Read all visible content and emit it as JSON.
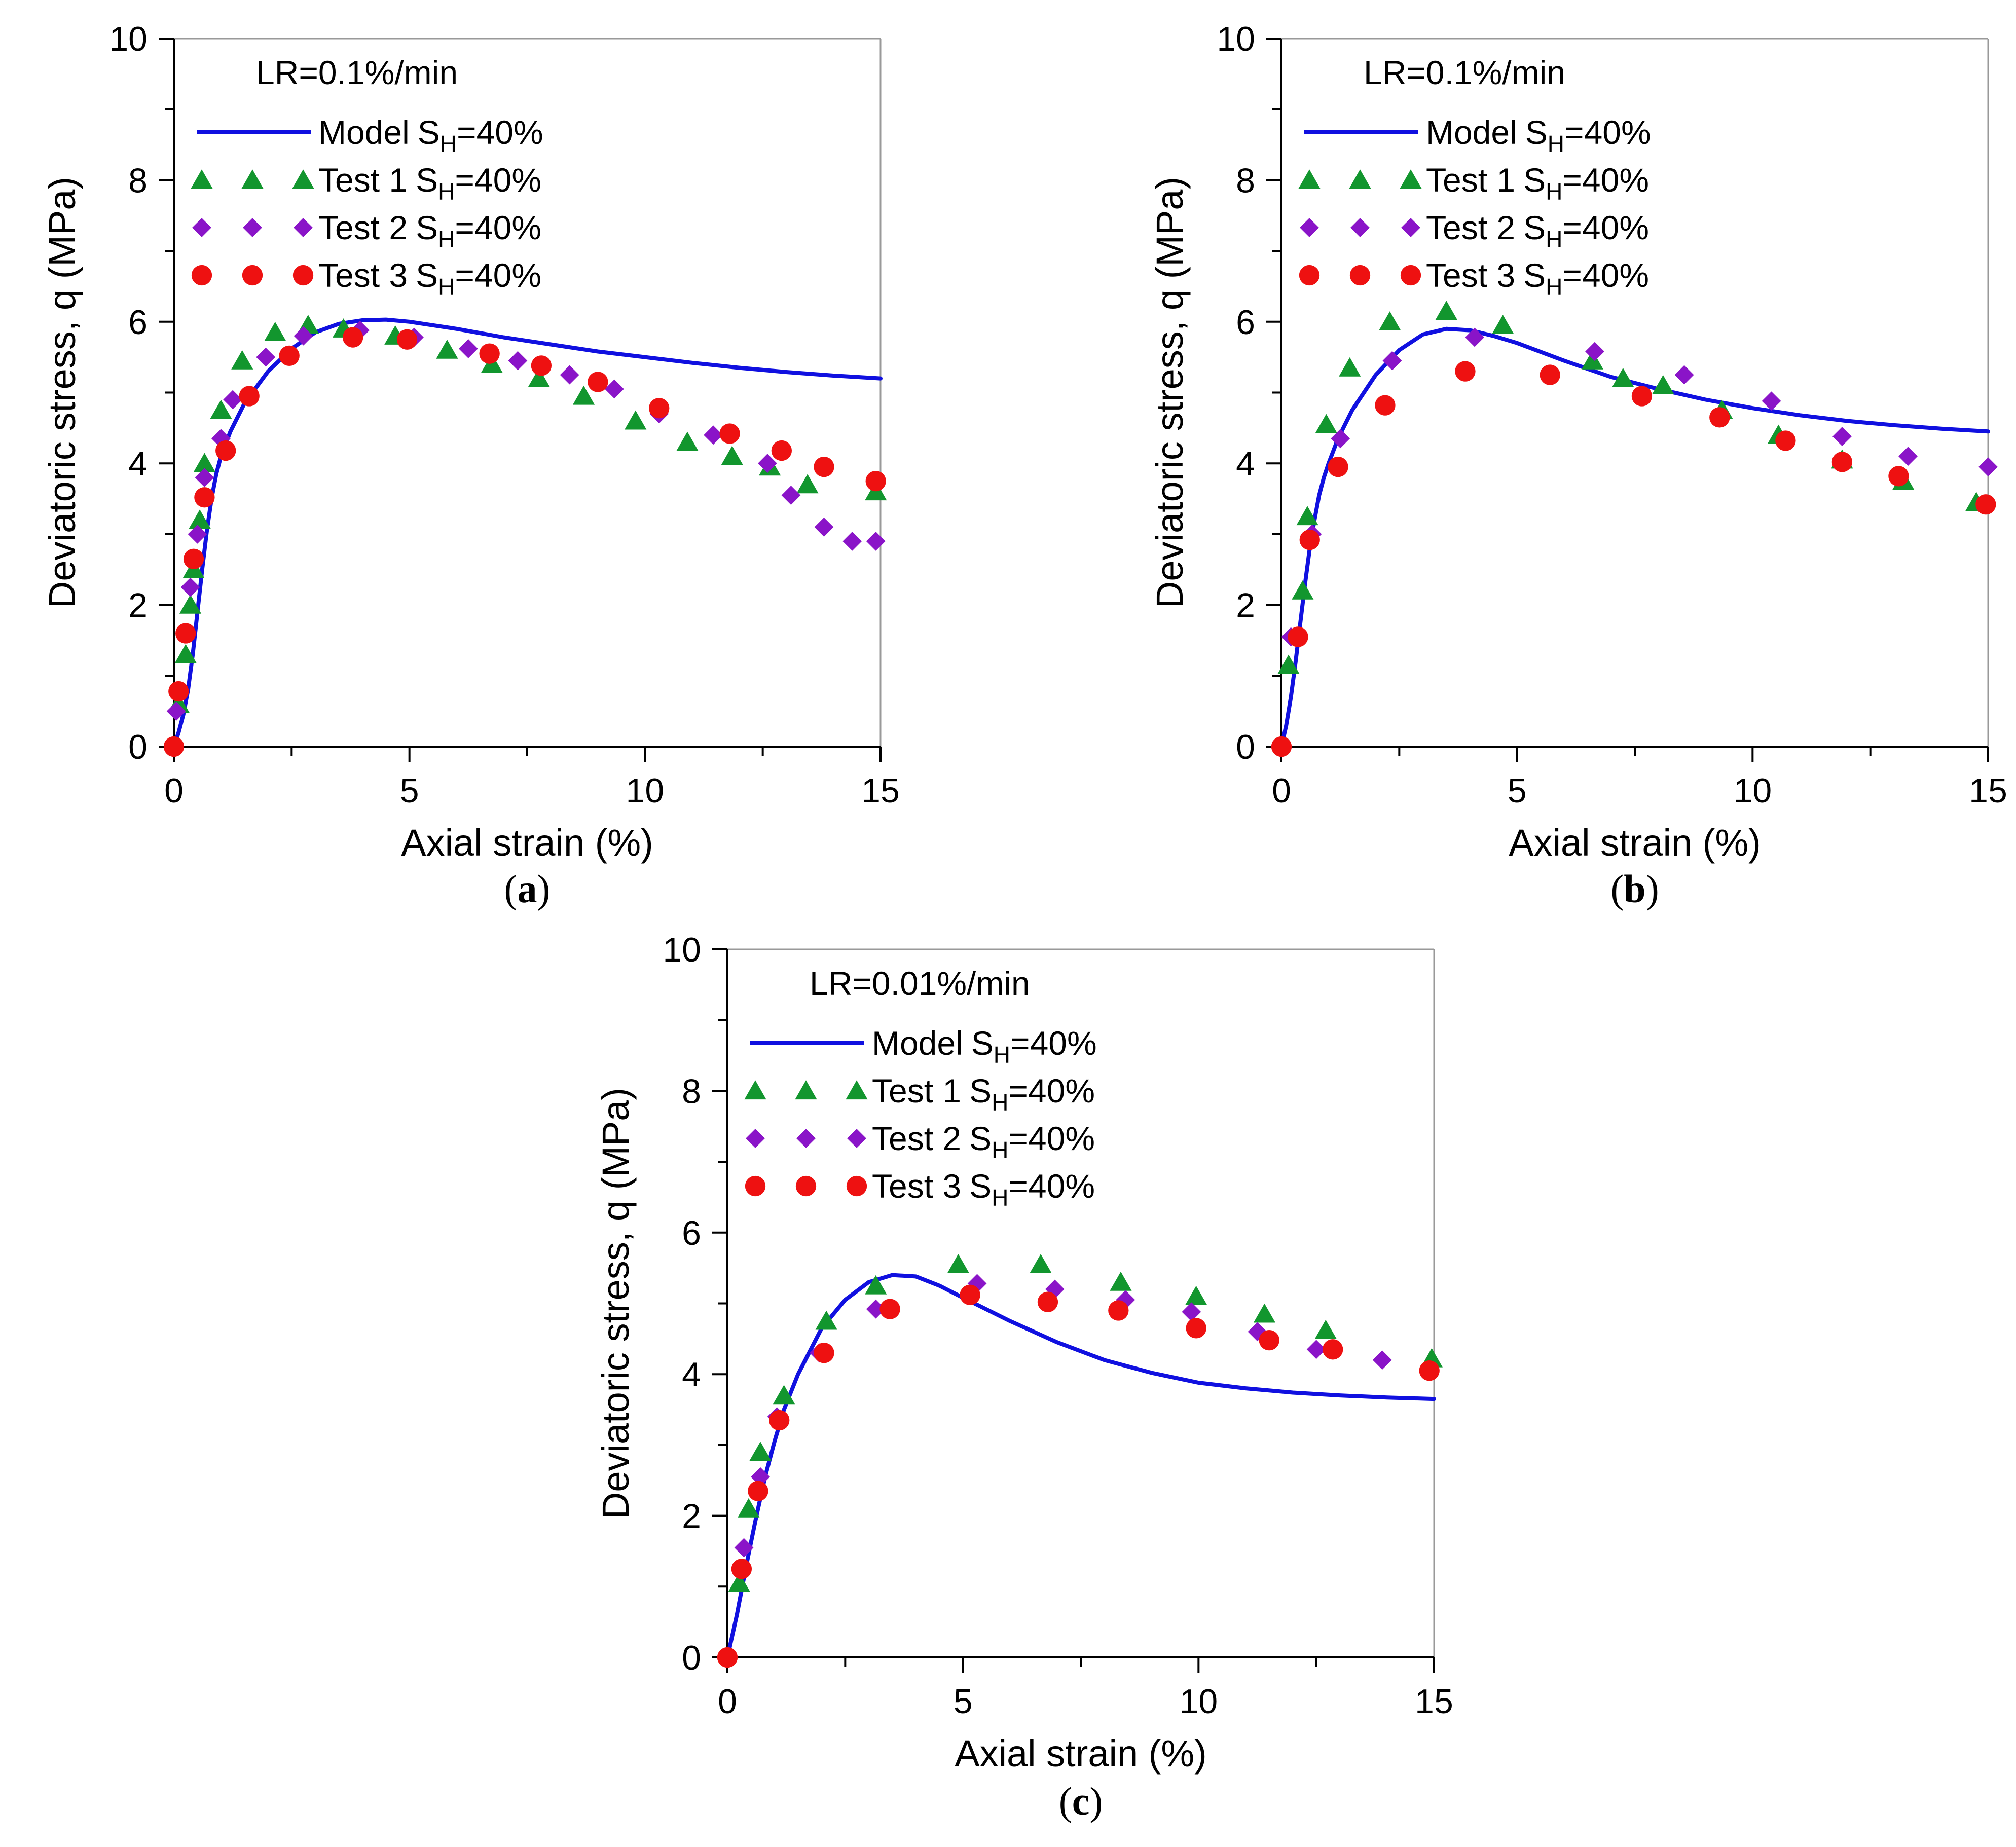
{
  "figure": {
    "captions": [
      "(a)",
      "(b)",
      "(c)"
    ]
  },
  "colors": {
    "model": "#1010e0",
    "test1": "#12962e",
    "test2": "#8a14c8",
    "test3": "#ee1111",
    "axis": "#000000",
    "frame": "#999999"
  },
  "chart_data": [
    {
      "id": "a",
      "type": "scatter",
      "caption": "(a)",
      "title": "LR=0.1%/min",
      "xlabel": "Axial strain (%)",
      "ylabel": "Deviatoric stress, q (MPa)",
      "xlim": [
        0,
        15
      ],
      "ylim": [
        0,
        10
      ],
      "xticks": [
        "0",
        "5",
        "10",
        "15"
      ],
      "yticks": [
        "0",
        "2",
        "4",
        "6",
        "8",
        "10"
      ],
      "legend_position": "top-left",
      "series": [
        {
          "name": "Model",
          "sub": "H",
          "suffix": "=40%",
          "kind": "line",
          "color_key": "model",
          "x": [
            0,
            0.1,
            0.2,
            0.3,
            0.4,
            0.5,
            0.6,
            0.7,
            0.8,
            0.9,
            1.0,
            1.2,
            1.5,
            2.0,
            2.5,
            3.0,
            3.5,
            4.0,
            4.5,
            5.0,
            6.0,
            7.0,
            8.0,
            9.0,
            10.0,
            11.0,
            12.0,
            13.0,
            14.0,
            15.0
          ],
          "values": [
            0,
            0.2,
            0.45,
            0.8,
            1.3,
            1.9,
            2.5,
            3.05,
            3.5,
            3.85,
            4.1,
            4.45,
            4.85,
            5.3,
            5.62,
            5.85,
            5.97,
            6.02,
            6.03,
            6.0,
            5.9,
            5.78,
            5.68,
            5.58,
            5.5,
            5.42,
            5.35,
            5.29,
            5.24,
            5.2
          ]
        },
        {
          "name": "Test 1",
          "sub": "H",
          "suffix": "=40%",
          "kind": "triangle",
          "color_key": "test1",
          "x": [
            0.1,
            0.25,
            0.35,
            0.42,
            0.55,
            0.65,
            1.0,
            1.45,
            2.15,
            2.85,
            3.6,
            4.7,
            5.8,
            6.75,
            7.75,
            8.7,
            9.8,
            10.9,
            11.85,
            12.65,
            13.45,
            14.9
          ],
          "values": [
            0.6,
            1.3,
            2.0,
            2.5,
            3.2,
            4.0,
            4.75,
            5.45,
            5.85,
            5.95,
            5.9,
            5.8,
            5.6,
            5.4,
            5.2,
            4.95,
            4.6,
            4.3,
            4.1,
            3.95,
            3.7,
            3.6
          ]
        },
        {
          "name": "Test 2",
          "sub": "H",
          "suffix": "=40%",
          "kind": "diamond",
          "color_key": "test2",
          "x": [
            0.05,
            0.25,
            0.35,
            0.5,
            0.65,
            1.0,
            1.25,
            1.95,
            2.75,
            3.95,
            5.1,
            6.25,
            7.3,
            8.4,
            9.35,
            10.3,
            11.45,
            12.6,
            13.1,
            13.8,
            14.4,
            14.9
          ],
          "values": [
            0.5,
            1.6,
            2.25,
            3.0,
            3.8,
            4.35,
            4.9,
            5.5,
            5.8,
            5.88,
            5.78,
            5.62,
            5.45,
            5.25,
            5.05,
            4.7,
            4.4,
            4.0,
            3.55,
            3.1,
            2.9,
            2.9
          ]
        },
        {
          "name": "Test 3",
          "sub": "H",
          "suffix": "=40%",
          "kind": "circle",
          "color_key": "test3",
          "x": [
            0,
            0.1,
            0.25,
            0.42,
            0.65,
            1.1,
            1.6,
            2.45,
            3.8,
            4.95,
            6.7,
            7.8,
            9.0,
            10.3,
            11.8,
            12.9,
            13.8,
            14.9
          ],
          "values": [
            0,
            0.78,
            1.6,
            2.65,
            3.52,
            4.18,
            4.95,
            5.52,
            5.78,
            5.75,
            5.55,
            5.38,
            5.15,
            4.78,
            4.42,
            4.18,
            3.95,
            3.75
          ]
        }
      ]
    },
    {
      "id": "b",
      "type": "scatter",
      "caption": "(b)",
      "title": "LR=0.1%/min",
      "xlabel": "Axial strain (%)",
      "ylabel": "Deviatoric stress, q (MPa)",
      "xlim": [
        0,
        15
      ],
      "ylim": [
        0,
        10
      ],
      "xticks": [
        "0",
        "5",
        "10",
        "15"
      ],
      "yticks": [
        "0",
        "2",
        "4",
        "6",
        "8",
        "10"
      ],
      "legend_position": "top-left",
      "series": [
        {
          "name": "Model",
          "sub": "H",
          "suffix": "=40%",
          "kind": "line",
          "color_key": "model",
          "x": [
            0,
            0.1,
            0.2,
            0.3,
            0.4,
            0.5,
            0.6,
            0.7,
            0.8,
            0.9,
            1.0,
            1.2,
            1.5,
            2.0,
            2.5,
            3.0,
            3.5,
            4.0,
            4.5,
            5.0,
            6.0,
            7.0,
            8.0,
            9.0,
            10.0,
            11.0,
            12.0,
            13.0,
            14.0,
            15.0
          ],
          "values": [
            0,
            0.3,
            0.7,
            1.2,
            1.75,
            2.3,
            2.8,
            3.2,
            3.55,
            3.8,
            4.0,
            4.35,
            4.75,
            5.25,
            5.6,
            5.82,
            5.9,
            5.88,
            5.8,
            5.7,
            5.45,
            5.22,
            5.05,
            4.9,
            4.78,
            4.68,
            4.6,
            4.54,
            4.49,
            4.45
          ]
        },
        {
          "name": "Test 1",
          "sub": "H",
          "suffix": "=40%",
          "kind": "triangle",
          "color_key": "test1",
          "x": [
            0.15,
            0.45,
            0.55,
            0.95,
            1.45,
            2.3,
            3.5,
            4.7,
            6.6,
            7.25,
            8.1,
            9.35,
            10.55,
            11.9,
            13.2,
            14.75
          ],
          "values": [
            1.15,
            2.2,
            3.25,
            4.55,
            5.35,
            6.0,
            6.15,
            5.95,
            5.45,
            5.2,
            5.1,
            4.75,
            4.4,
            4.05,
            3.75,
            3.45
          ]
        },
        {
          "name": "Test 2",
          "sub": "H",
          "suffix": "=40%",
          "kind": "diamond",
          "color_key": "test2",
          "x": [
            0.2,
            0.65,
            1.25,
            2.35,
            4.1,
            6.65,
            8.55,
            10.4,
            11.9,
            13.3,
            15.0
          ],
          "values": [
            1.55,
            3.0,
            4.35,
            5.45,
            5.78,
            5.58,
            5.25,
            4.88,
            4.38,
            4.1,
            3.95
          ]
        },
        {
          "name": "Test 3",
          "sub": "H",
          "suffix": "=40%",
          "kind": "circle",
          "color_key": "test3",
          "x": [
            0,
            0.35,
            0.6,
            1.2,
            2.2,
            3.9,
            5.7,
            7.65,
            9.3,
            10.7,
            11.9,
            13.1,
            14.95
          ],
          "values": [
            0,
            1.55,
            2.92,
            3.95,
            4.82,
            5.3,
            5.25,
            4.95,
            4.65,
            4.32,
            4.02,
            3.82,
            3.42
          ]
        }
      ]
    },
    {
      "id": "c",
      "type": "scatter",
      "caption": "(c)",
      "title": "LR=0.01%/min",
      "xlabel": "Axial strain (%)",
      "ylabel": "Deviatoric stress, q (MPa)",
      "xlim": [
        0,
        15
      ],
      "ylim": [
        0,
        10
      ],
      "xticks": [
        "0",
        "5",
        "10",
        "15"
      ],
      "yticks": [
        "0",
        "2",
        "4",
        "6",
        "8",
        "10"
      ],
      "legend_position": "top-left",
      "series": [
        {
          "name": "Model",
          "sub": "H",
          "suffix": "=40%",
          "kind": "line",
          "color_key": "model",
          "x": [
            0,
            0.2,
            0.4,
            0.6,
            0.8,
            1.0,
            1.2,
            1.5,
            2.0,
            2.5,
            3.0,
            3.5,
            4.0,
            4.5,
            5.0,
            6.0,
            7.0,
            8.0,
            9.0,
            10.0,
            11.0,
            12.0,
            13.0,
            14.0,
            15.0
          ],
          "values": [
            0,
            0.6,
            1.3,
            1.95,
            2.55,
            3.05,
            3.5,
            4.0,
            4.65,
            5.05,
            5.3,
            5.4,
            5.38,
            5.25,
            5.08,
            4.75,
            4.45,
            4.2,
            4.02,
            3.88,
            3.8,
            3.74,
            3.7,
            3.67,
            3.65
          ]
        },
        {
          "name": "Test 1",
          "sub": "H",
          "suffix": "=40%",
          "kind": "triangle",
          "color_key": "test1",
          "x": [
            0.25,
            0.45,
            0.7,
            1.2,
            2.1,
            3.15,
            4.9,
            6.65,
            8.35,
            9.95,
            11.4,
            12.7,
            14.95
          ],
          "values": [
            1.05,
            2.1,
            2.9,
            3.7,
            4.75,
            5.25,
            5.55,
            5.55,
            5.3,
            5.1,
            4.85,
            4.62,
            4.22
          ]
        },
        {
          "name": "Test 2",
          "sub": "H",
          "suffix": "=40%",
          "kind": "diamond",
          "color_key": "test2",
          "x": [
            0.35,
            0.7,
            1.05,
            1.95,
            3.15,
            5.3,
            6.95,
            8.45,
            9.85,
            11.25,
            12.5,
            13.9
          ],
          "values": [
            1.55,
            2.55,
            3.4,
            4.3,
            4.92,
            5.28,
            5.2,
            5.05,
            4.88,
            4.6,
            4.35,
            4.2
          ]
        },
        {
          "name": "Test 3",
          "sub": "H",
          "suffix": "=40%",
          "kind": "circle",
          "color_key": "test3",
          "x": [
            0,
            0.3,
            0.65,
            1.1,
            2.05,
            3.45,
            5.15,
            6.8,
            8.3,
            9.95,
            11.5,
            12.85,
            14.9
          ],
          "values": [
            0,
            1.25,
            2.35,
            3.35,
            4.3,
            4.92,
            5.12,
            5.02,
            4.9,
            4.65,
            4.48,
            4.35,
            4.05
          ]
        }
      ]
    }
  ]
}
